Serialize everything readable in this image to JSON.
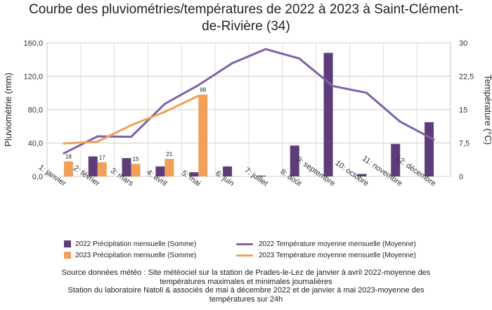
{
  "page": {
    "title_line1": "Courbe des pluviométries/températures de 2022 à 2023 à Saint-Clément-",
    "title_line2": "de-Rivière (34)"
  },
  "legend": {
    "items": [
      {
        "label": "2022 Précipitation mensuelle (Somme)",
        "kind": "bar",
        "color": "#5e3c7a"
      },
      {
        "label": "2023 Précipitation mensuelle (Somme)",
        "kind": "bar",
        "color": "#f0a058"
      },
      {
        "label": "2022 Température moyenne mensuelle (Moyenne)",
        "kind": "line",
        "color": "#7e62a8"
      },
      {
        "label": "2023 Température moyenne mensuelle (Moyenne)",
        "kind": "line",
        "color": "#f0a058"
      }
    ]
  },
  "source": {
    "line1": "Source données météo : Site météociel sur la station de Prades-le-Lez de janvier à avril 2022-moyenne des",
    "line2": "températures maximales et minimales journalières",
    "line3": "Station du laboratoire Natoli & associés  de mai à décembre 2022 et de janvier à mai 2023-moyenne des",
    "line4": "températures sur 24h"
  },
  "chart_data": {
    "type": "bar",
    "categories": [
      "1: janvier",
      "2: février",
      "3: mars",
      "4: avril",
      "5: mai",
      "6: juin",
      "7: juillet",
      "8: août",
      "9: septembre",
      "10: octobre",
      "11: novembre",
      "12: décembre"
    ],
    "ylabel": "Pluviométrie (mm)",
    "y2label": "Température (°C)",
    "ylim": [
      0,
      160
    ],
    "yticks": [
      "0,0",
      "40,0",
      "80,0",
      "120,0",
      "160,0"
    ],
    "y2lim": [
      0,
      30
    ],
    "y2ticks": [
      "0",
      "7,5",
      "15",
      "22,5",
      "30"
    ],
    "grid": true,
    "legend_position": "bottom",
    "bar_series": [
      {
        "name": "2022 Précipitation mensuelle (Somme)",
        "color": "#5e3c7a",
        "values": [
          null,
          24,
          22,
          12,
          5,
          12,
          1,
          37,
          148,
          3,
          39,
          65
        ],
        "labels": [
          null,
          null,
          null,
          null,
          null,
          null,
          null,
          null,
          null,
          null,
          null,
          null
        ]
      },
      {
        "name": "2023 Précipitation mensuelle (Somme)",
        "color": "#f0a058",
        "values": [
          18,
          17,
          15,
          21,
          98,
          null,
          null,
          null,
          null,
          null,
          null,
          null
        ],
        "labels": [
          "18",
          "17",
          "15",
          "21",
          "98",
          null,
          null,
          null,
          null,
          null,
          null,
          null
        ]
      }
    ],
    "line_series": [
      {
        "name": "2022 Température moyenne mensuelle (Moyenne)",
        "color": "#7e62a8",
        "values": [
          5.2,
          9.0,
          8.9,
          16.3,
          20.5,
          25.4,
          28.6,
          26.5,
          20.3,
          18.8,
          12.3,
          8.3
        ]
      },
      {
        "name": "2023 Température moyenne mensuelle (Moyenne)",
        "color": "#f0a058",
        "values": [
          7.4,
          7.8,
          11.5,
          14.5,
          18.1,
          null,
          null,
          null,
          null,
          null,
          null,
          null
        ]
      }
    ]
  }
}
